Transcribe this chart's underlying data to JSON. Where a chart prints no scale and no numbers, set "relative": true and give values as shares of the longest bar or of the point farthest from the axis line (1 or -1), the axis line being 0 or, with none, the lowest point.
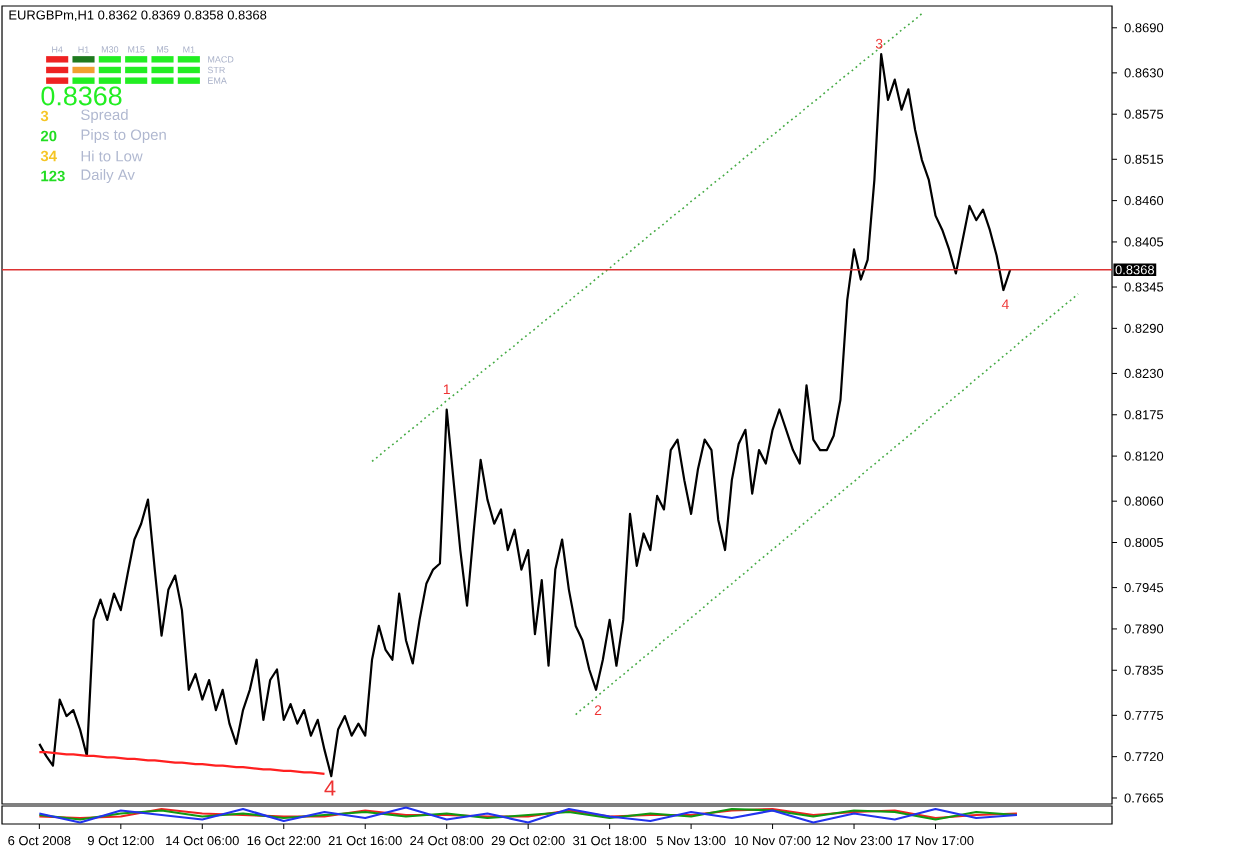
{
  "chart_data": [
    {
      "type": "line",
      "title": "EURGBPm,H1 0.8362 0.8369 0.8358 0.8368",
      "ylim": [
        0.7657,
        0.8719
      ],
      "yticks": [
        {
          "value": 0.869,
          "label": "0.8690"
        },
        {
          "value": 0.863,
          "label": "0.8630"
        },
        {
          "value": 0.8575,
          "label": "0.8575"
        },
        {
          "value": 0.8515,
          "label": "0.8515"
        },
        {
          "value": 0.846,
          "label": "0.8460"
        },
        {
          "value": 0.8405,
          "label": "0.8405"
        },
        {
          "value": 0.8345,
          "label": "0.8345"
        },
        {
          "value": 0.829,
          "label": "0.8290"
        },
        {
          "value": 0.823,
          "label": "0.8230"
        },
        {
          "value": 0.8175,
          "label": "0.8175"
        },
        {
          "value": 0.812,
          "label": "0.8120"
        },
        {
          "value": 0.806,
          "label": "0.8060"
        },
        {
          "value": 0.8005,
          "label": "0.8005"
        },
        {
          "value": 0.7945,
          "label": "0.7945"
        },
        {
          "value": 0.789,
          "label": "0.7890"
        },
        {
          "value": 0.7835,
          "label": "0.7835"
        },
        {
          "value": 0.7775,
          "label": "0.7775"
        },
        {
          "value": 0.772,
          "label": "0.7720"
        },
        {
          "value": 0.7665,
          "label": "0.7665"
        }
      ],
      "tick_labels": "y",
      "categories": [
        null,
        null,
        null,
        null,
        null,
        null,
        null,
        null,
        null,
        null,
        null,
        null,
        null,
        null,
        null,
        null,
        null,
        null,
        null,
        null,
        null,
        null,
        null,
        null,
        null,
        null,
        null,
        null,
        null,
        null,
        null,
        null,
        null,
        null,
        null,
        null,
        null,
        null,
        null,
        null,
        null,
        null,
        null,
        null,
        null,
        null,
        null,
        null,
        null,
        null,
        null,
        null,
        null,
        null,
        null,
        null,
        null,
        null,
        null,
        null,
        null,
        null,
        null,
        null,
        null,
        null,
        null,
        null,
        null,
        null,
        null,
        null,
        null,
        null,
        null,
        null,
        null,
        null,
        null,
        null,
        null,
        null,
        null,
        null,
        null,
        null,
        null,
        null,
        null,
        null,
        null,
        null,
        null,
        null,
        null,
        null,
        null,
        null,
        null,
        null,
        null,
        null,
        null,
        null,
        null,
        null,
        null,
        null,
        null,
        null,
        null,
        null,
        null,
        null,
        null,
        null,
        null,
        null,
        null,
        null,
        null,
        null,
        null,
        null,
        null,
        null,
        null,
        null,
        null,
        null,
        null,
        null,
        null,
        null,
        null,
        null,
        null,
        null,
        null,
        null,
        null,
        null,
        null,
        null,
        null,
        null,
        null,
        null,
        null,
        null,
        null,
        null,
        null,
        null,
        null,
        null,
        null
      ],
      "series": [
        {
          "color": "#000000",
          "values": [
            0.7737,
            0.7721,
            0.7708,
            0.7796,
            0.7774,
            0.7782,
            0.7756,
            0.7721,
            0.7902,
            0.7929,
            0.7902,
            0.7937,
            0.7915,
            0.7963,
            0.8009,
            0.803,
            0.8062,
            0.7969,
            0.7881,
            0.7942,
            0.7961,
            0.7915,
            0.7809,
            0.783,
            0.7796,
            0.7822,
            0.7782,
            0.7809,
            0.7764,
            0.7737,
            0.7782,
            0.7809,
            0.7849,
            0.7769,
            0.7822,
            0.7836,
            0.7769,
            0.779,
            0.7764,
            0.7782,
            0.7748,
            0.7769,
            0.7729,
            0.7694,
            0.7756,
            0.7774,
            0.7748,
            0.7764,
            0.7748,
            0.7849,
            0.7894,
            0.7862,
            0.7849,
            0.7937,
            0.7875,
            0.7844,
            0.7902,
            0.795,
            0.7969,
            0.7977,
            0.8182,
            0.8088,
            0.7995,
            0.7921,
            0.8022,
            0.8115,
            0.8062,
            0.803,
            0.8049,
            0.7995,
            0.8022,
            0.7969,
            0.7995,
            0.7883,
            0.7955,
            0.7841,
            0.7969,
            0.8009,
            0.7942,
            0.7894,
            0.7875,
            0.7836,
            0.7809,
            0.7849,
            0.7902,
            0.7841,
            0.7902,
            0.8043,
            0.7974,
            0.8017,
            0.7995,
            0.8067,
            0.8049,
            0.8128,
            0.8142,
            0.8088,
            0.8043,
            0.8102,
            0.8142,
            0.8128,
            0.8035,
            0.7995,
            0.8088,
            0.8136,
            0.8155,
            0.807,
            0.8128,
            0.811,
            0.8155,
            0.8182,
            0.8155,
            0.8128,
            0.811,
            0.8214,
            0.8142,
            0.8128,
            0.8128,
            0.8147,
            0.8195,
            0.8328,
            0.8395,
            0.8355,
            0.8381,
            0.8488,
            0.8655,
            0.8594,
            0.8621,
            0.8581,
            0.8608,
            0.8554,
            0.8514,
            0.8488,
            0.844,
            0.8421,
            0.8395,
            0.8363,
            0.8408,
            0.8453,
            0.8434,
            0.8448,
            0.8421,
            0.8387,
            0.8341,
            0.8368,
            null,
            null,
            null,
            null,
            null,
            null,
            null,
            null,
            null,
            null,
            null,
            null,
            null
          ]
        },
        {
          "color": "#44aa44",
          "line_style": "dotted",
          "values": [
            null,
            null,
            null,
            null,
            null,
            null,
            null,
            null,
            null,
            null,
            null,
            null,
            null,
            null,
            null,
            null,
            null,
            null,
            null,
            null,
            null,
            null,
            null,
            null,
            null,
            null,
            null,
            null,
            null,
            null,
            null,
            null,
            null,
            null,
            null,
            null,
            null,
            null,
            null,
            null,
            null,
            null,
            null,
            null,
            null,
            null,
            null,
            null,
            null,
            0.8113,
            0.812,
            0.8128,
            0.8135,
            0.8142,
            0.815,
            0.8157,
            0.8164,
            0.8172,
            0.8179,
            0.8186,
            0.8194,
            0.8201,
            0.8208,
            0.8216,
            0.8223,
            0.8231,
            0.8238,
            0.8245,
            0.8253,
            0.826,
            0.8267,
            0.8275,
            0.8282,
            0.8289,
            0.8297,
            0.8304,
            0.8311,
            0.8319,
            0.8326,
            0.8334,
            0.8341,
            0.8348,
            0.8356,
            0.8363,
            0.837,
            0.8378,
            0.8385,
            0.8392,
            0.84,
            0.8407,
            0.8415,
            0.8422,
            0.8429,
            0.8437,
            0.8444,
            0.8451,
            0.8459,
            0.8466,
            0.8473,
            0.8481,
            0.8488,
            0.8495,
            0.8503,
            0.851,
            0.8518,
            0.8525,
            0.8532,
            0.854,
            0.8547,
            0.8554,
            0.8562,
            0.8569,
            0.8576,
            0.8584,
            0.8591,
            0.8598,
            0.8606,
            0.8613,
            0.8621,
            0.8628,
            0.8635,
            0.8643,
            0.865,
            0.8657,
            0.8665,
            0.8672,
            0.8679,
            0.8687,
            0.8694,
            0.8701,
            0.8709,
            null,
            null,
            null,
            null,
            null,
            null,
            null,
            null,
            null,
            null,
            null,
            null,
            null,
            null,
            null,
            null,
            null,
            null,
            null,
            null,
            null,
            null,
            null,
            null,
            null,
            null
          ]
        },
        {
          "color": "#44aa44",
          "line_style": "dotted",
          "values": [
            null,
            null,
            null,
            null,
            null,
            null,
            null,
            null,
            null,
            null,
            null,
            null,
            null,
            null,
            null,
            null,
            null,
            null,
            null,
            null,
            null,
            null,
            null,
            null,
            null,
            null,
            null,
            null,
            null,
            null,
            null,
            null,
            null,
            null,
            null,
            null,
            null,
            null,
            null,
            null,
            null,
            null,
            null,
            null,
            null,
            null,
            null,
            null,
            null,
            null,
            null,
            null,
            null,
            null,
            null,
            null,
            null,
            null,
            null,
            null,
            null,
            null,
            null,
            null,
            null,
            null,
            null,
            null,
            null,
            null,
            null,
            null,
            null,
            null,
            null,
            null,
            null,
            null,
            null,
            0.7776,
            0.7784,
            0.7791,
            0.7799,
            0.7807,
            0.7814,
            0.7822,
            0.7829,
            0.7837,
            0.7844,
            0.7852,
            0.7859,
            0.7867,
            0.7875,
            0.7882,
            0.789,
            0.7897,
            0.7905,
            0.7912,
            0.792,
            0.7928,
            0.7935,
            0.7943,
            0.795,
            0.7958,
            0.7965,
            0.7973,
            0.7981,
            0.7988,
            0.7996,
            0.8003,
            0.8011,
            0.8018,
            0.8026,
            0.8033,
            0.8041,
            0.8049,
            0.8056,
            0.8064,
            0.8071,
            0.8079,
            0.8086,
            0.8094,
            0.8102,
            0.8109,
            0.8117,
            0.8124,
            0.8132,
            0.8139,
            0.8147,
            0.8154,
            0.8162,
            0.817,
            0.8177,
            0.8185,
            0.8192,
            0.82,
            0.8207,
            0.8215,
            0.8223,
            0.823,
            0.8238,
            0.8245,
            0.8253,
            0.826,
            0.8268,
            0.8276,
            0.8283,
            0.8291,
            0.8298,
            0.8306,
            0.8313,
            0.8321,
            0.8328,
            0.8336,
            null,
            null,
            null
          ]
        },
        {
          "color": "#ff2020",
          "values": [
            0.7726,
            0.7726,
            0.7725,
            0.7724,
            0.7723,
            0.7723,
            0.7722,
            0.7721,
            0.7721,
            0.772,
            0.7719,
            0.7719,
            0.7718,
            0.7717,
            0.7717,
            0.7716,
            0.7715,
            0.7715,
            0.7714,
            0.7713,
            0.7712,
            0.7712,
            0.7711,
            0.771,
            0.771,
            0.7709,
            0.7708,
            0.7708,
            0.7707,
            0.7706,
            0.7706,
            0.7705,
            0.7704,
            0.7703,
            0.7703,
            0.7702,
            0.7701,
            0.7701,
            0.77,
            0.7699,
            0.7699,
            0.7698,
            0.7697,
            null,
            null,
            null,
            null,
            null,
            null,
            null,
            null,
            null,
            null,
            null,
            null,
            null,
            null,
            null,
            null,
            null,
            null,
            null,
            null,
            null,
            null,
            null,
            null,
            null,
            null,
            null,
            null,
            null,
            null,
            null,
            null,
            null,
            null,
            null,
            null,
            null,
            null,
            null,
            null,
            null,
            null,
            null,
            null,
            null,
            null,
            null,
            null,
            null,
            null,
            null,
            null,
            null,
            null,
            null,
            null,
            null,
            null,
            null,
            null,
            null,
            null,
            null,
            null,
            null,
            null,
            null,
            null,
            null,
            null,
            null,
            null,
            null,
            null,
            null,
            null,
            null,
            null,
            null,
            null,
            null,
            null,
            null,
            null,
            null,
            null,
            null,
            null,
            null,
            null,
            null,
            null,
            null,
            null,
            null,
            null,
            null,
            null,
            null,
            null,
            null,
            null,
            null,
            null,
            null,
            null,
            null,
            null,
            null,
            null,
            null,
            null,
            null,
            null
          ]
        }
      ],
      "ref_lines": [
        {
          "axis": "y",
          "value": 0.8368,
          "label": "0.8368",
          "color": "#dd3333"
        }
      ],
      "annotations": [
        {
          "text": "1",
          "y": 0.8182
        },
        {
          "text": "2",
          "y": 0.7809
        },
        {
          "text": "3",
          "y": 0.8655
        },
        {
          "text": "4",
          "y": 0.8341
        },
        "4"
      ]
    },
    {
      "type": "other",
      "categories": [
        "H4",
        "H1",
        "M30",
        "M15",
        "M5",
        "M1"
      ],
      "y_categories": [
        "MACD",
        "STR",
        "EMA"
      ],
      "colors": [
        [
          "#ee2222",
          "#1e7a1e",
          "#22ee22",
          "#22ee22",
          "#22ee22",
          "#22ee22"
        ],
        [
          "#ee2222",
          "#f0a030",
          "#22ee22",
          "#22ee22",
          "#22ee22",
          "#22ee22"
        ],
        [
          "#ee2222",
          "#22ee22",
          "#22ee22",
          "#22ee22",
          "#22ee22",
          "#22ee22"
        ]
      ]
    },
    {
      "type": "other",
      "annotations": [
        "0.8368"
      ],
      "categories": [
        "Spread",
        "Pips to Open",
        "Hi to Low",
        "Daily Av"
      ],
      "values": [
        3,
        20,
        34,
        123
      ],
      "colors": [
        "#f5c525",
        "#22dd22",
        "#f5c525",
        "#22dd22"
      ],
      "data_labels": true
    },
    {
      "type": "line",
      "relative": true,
      "tick_labels": "x",
      "categories": [
        "6 Oct 2008",
        null,
        "9 Oct 12:00",
        null,
        "14 Oct 06:00",
        null,
        "16 Oct 22:00",
        null,
        "21 Oct 16:00",
        null,
        "24 Oct 08:00",
        null,
        "29 Oct 02:00",
        null,
        "31 Oct 18:00",
        null,
        "5 Nov 13:00",
        null,
        "10 Nov 07:00",
        null,
        "12 Nov 23:00",
        null,
        "17 Nov 17:00",
        null,
        null,
        null,
        null
      ],
      "series": [
        {
          "color": "#ee2222",
          "values": [
            0.4,
            0.3,
            0.4,
            0.9,
            0.6,
            0.5,
            0.4,
            0.4,
            0.8,
            0.5,
            0.5,
            0.4,
            0.4,
            0.8,
            0.4,
            0.5,
            0.5,
            0.8,
            0.9,
            0.5,
            0.7,
            0.8,
            0.3,
            0.5,
            0.6,
            null,
            null
          ]
        },
        {
          "color": "#119911",
          "values": [
            0.5,
            0.2,
            0.6,
            0.8,
            0.4,
            0.6,
            0.3,
            0.5,
            0.7,
            0.4,
            0.6,
            0.3,
            0.5,
            0.7,
            0.3,
            0.6,
            0.4,
            0.9,
            0.8,
            0.4,
            0.8,
            0.7,
            0.2,
            0.7,
            0.5,
            null,
            null
          ]
        },
        {
          "color": "#2233ee",
          "values": [
            0.6,
            0.0,
            0.8,
            0.5,
            0.2,
            0.9,
            0.1,
            0.7,
            0.3,
            1.0,
            0.2,
            0.6,
            0.0,
            0.9,
            0.4,
            0.1,
            0.7,
            0.3,
            0.8,
            0.0,
            0.6,
            0.2,
            0.9,
            0.3,
            0.5,
            null,
            null
          ]
        }
      ]
    }
  ]
}
